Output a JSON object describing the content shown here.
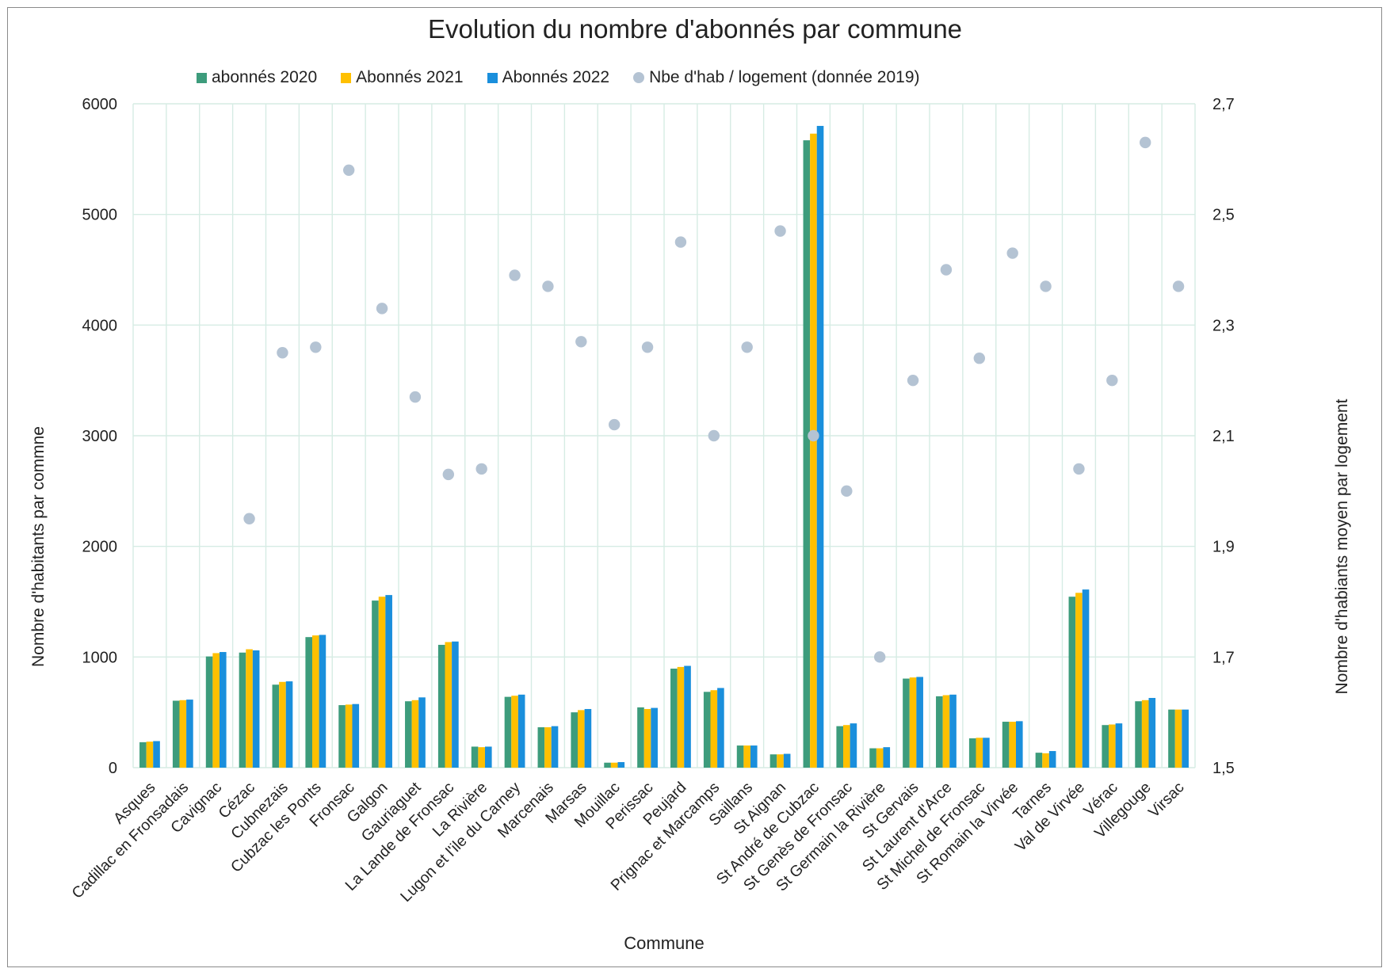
{
  "chart_data": {
    "type": "bar",
    "title": "Evolution du nombre d'abonnés par commune",
    "xlabel": "Commune",
    "ylabel": "Nombre d'habitants par commne",
    "y2label": "Nombre d'habiants moyen par logement",
    "ylim": [
      0,
      6000
    ],
    "yticks": [
      "0",
      "1000",
      "2000",
      "3000",
      "4000",
      "5000",
      "6000"
    ],
    "y2lim": [
      1.5,
      2.7
    ],
    "y2ticks": [
      "1,5",
      "1,7",
      "1,9",
      "2,1",
      "2,3",
      "2,5",
      "2,7"
    ],
    "grid": true,
    "legend_position": "top",
    "categories": [
      "Asques",
      "Cadillac en Fronsadais",
      "Cavignac",
      "Cézac",
      "Cubnezais",
      "Cubzac les Ponts",
      "Fronsac",
      "Galgon",
      "Gauriaguet",
      "La Lande de Fronsac",
      "La Rivière",
      "Lugon et l'ile du Carney",
      "Marcenais",
      "Marsas",
      "Mouillac",
      "Perissac",
      "Peujard",
      "Prignac et Marcamps",
      "Saillans",
      "St Aignan",
      "St André de Cubzac",
      "St Genès de Fronsac",
      "St Germain la Rivière",
      "St Gervais",
      "St Laurent d'Arce",
      "St Michel de Fronsac",
      "St Romain la Virvée",
      "Tarnes",
      "Val de Virvée",
      "Vérac",
      "Villegouge",
      "Virsac"
    ],
    "series": [
      {
        "name": "abonnés 2020",
        "type": "bar",
        "axis": "left",
        "color": "#3d9c7c",
        "values": [
          230,
          605,
          1005,
          1040,
          750,
          1180,
          565,
          1510,
          600,
          1110,
          190,
          640,
          365,
          500,
          45,
          545,
          895,
          685,
          200,
          120,
          5670,
          375,
          175,
          805,
          645,
          265,
          415,
          135,
          1545,
          385,
          600,
          525
        ]
      },
      {
        "name": "Abonnés 2021",
        "type": "bar",
        "axis": "left",
        "color": "#ffc000",
        "values": [
          235,
          610,
          1035,
          1070,
          775,
          1195,
          570,
          1545,
          610,
          1135,
          185,
          650,
          365,
          520,
          45,
          530,
          910,
          700,
          200,
          120,
          5730,
          385,
          175,
          815,
          655,
          270,
          415,
          130,
          1580,
          390,
          610,
          525
        ]
      },
      {
        "name": "Abonnés 2022",
        "type": "bar",
        "axis": "left",
        "color": "#1a8fdc",
        "values": [
          240,
          615,
          1045,
          1060,
          780,
          1200,
          575,
          1560,
          635,
          1140,
          190,
          660,
          375,
          530,
          50,
          540,
          920,
          720,
          200,
          125,
          5800,
          400,
          185,
          820,
          660,
          270,
          420,
          150,
          1610,
          400,
          630,
          525
        ]
      },
      {
        "name": "Nbe d'hab / logement (donnée 2019)",
        "type": "scatter",
        "axis": "right",
        "color": "#b4c3d3",
        "values": [
          null,
          null,
          null,
          1.95,
          2.25,
          2.26,
          2.58,
          2.33,
          2.17,
          2.03,
          2.04,
          2.39,
          2.37,
          2.27,
          2.12,
          2.26,
          2.45,
          2.1,
          2.26,
          2.47,
          2.1,
          2.0,
          1.7,
          2.2,
          2.4,
          2.24,
          2.43,
          2.37,
          2.04,
          2.2,
          2.63,
          2.37
        ]
      }
    ]
  }
}
